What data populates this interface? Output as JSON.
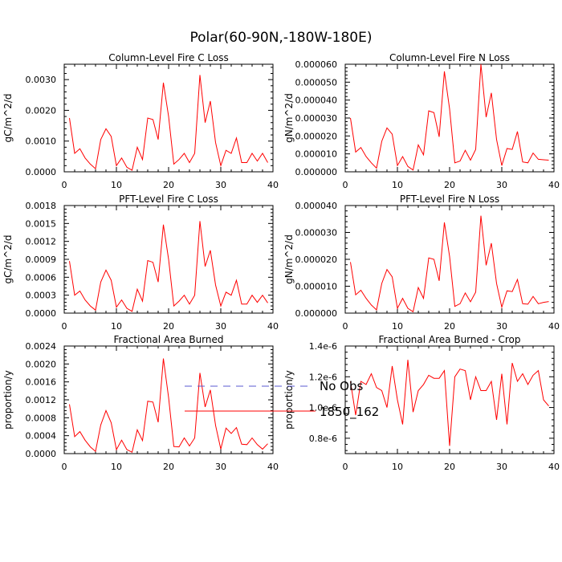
{
  "figure": {
    "title": "Polar(60-90N,-180W-180E)"
  },
  "legend": {
    "entries": [
      {
        "label": "No Obs",
        "color": "#5a5ad0",
        "dash": true
      },
      {
        "label": "1850_162",
        "color": "#ff0000",
        "dash": false
      }
    ]
  },
  "colors": {
    "series": "#ff0000",
    "axis": "#000000"
  },
  "chart_data": [
    {
      "type": "line",
      "title": "Column-Level Fire C Loss",
      "ylabel": "gC/m^2/d",
      "xlim": [
        0,
        40
      ],
      "ylim": [
        0,
        0.0035
      ],
      "xticks": [
        0,
        10,
        20,
        30,
        40
      ],
      "xtick_labels": [
        "0",
        "10",
        "20",
        "30",
        "40"
      ],
      "yticks": [
        0,
        0.001,
        0.002,
        0.003
      ],
      "ytick_labels": [
        "0.0000",
        "0.0010",
        "0.0020",
        "0.0030"
      ],
      "series": [
        {
          "name": "1850_162",
          "x": [
            1,
            2,
            3,
            4,
            5,
            6,
            7,
            8,
            9,
            10,
            11,
            12,
            13,
            14,
            15,
            16,
            17,
            18,
            19,
            20,
            21,
            22,
            23,
            24,
            25,
            26,
            27,
            28,
            29,
            30,
            31,
            32,
            33,
            34,
            35,
            36,
            37,
            38,
            39
          ],
          "values": [
            0.00175,
            0.0006,
            0.00075,
            0.00045,
            0.00025,
            0.0001,
            0.00105,
            0.0014,
            0.00115,
            0.0002,
            0.00045,
            0.00015,
            5e-05,
            0.0008,
            0.0004,
            0.00175,
            0.0017,
            0.00105,
            0.0029,
            0.0018,
            0.00025,
            0.0004,
            0.0006,
            0.0003,
            0.0006,
            0.00315,
            0.0016,
            0.0023,
            0.00095,
            0.0002,
            0.0007,
            0.0006,
            0.0011,
            0.0003,
            0.0003,
            0.0006,
            0.00035,
            0.0006,
            0.0003
          ]
        }
      ]
    },
    {
      "type": "line",
      "title": "Column-Level Fire N Loss",
      "ylabel": "gN/m^2/d",
      "xlim": [
        0,
        40
      ],
      "ylim": [
        0,
        6e-05
      ],
      "xticks": [
        0,
        10,
        20,
        30,
        40
      ],
      "xtick_labels": [
        "0",
        "10",
        "20",
        "30",
        "40"
      ],
      "yticks": [
        0,
        1e-05,
        2e-05,
        3e-05,
        4e-05,
        5e-05,
        6e-05
      ],
      "ytick_labels": [
        "0.000000",
        "0.000010",
        "0.000020",
        "0.000030",
        "0.000040",
        "0.000050",
        "0.000060"
      ],
      "series": [
        {
          "name": "1850_162",
          "x": [
            1,
            2,
            3,
            4,
            5,
            6,
            7,
            8,
            9,
            10,
            11,
            12,
            13,
            14,
            15,
            16,
            17,
            18,
            19,
            20,
            21,
            22,
            23,
            24,
            25,
            26,
            27,
            28,
            29,
            30,
            31,
            32,
            33,
            34,
            35,
            36,
            37,
            38,
            39
          ],
          "values": [
            3e-05,
            1.1e-05,
            1.35e-05,
            8.5e-06,
            5e-06,
            2e-06,
            1.7e-05,
            2.45e-05,
            2.1e-05,
            3.5e-06,
            8.5e-06,
            3e-06,
            1e-06,
            1.5e-05,
            9.5e-06,
            3.4e-05,
            3.3e-05,
            1.95e-05,
            5.6e-05,
            3.5e-05,
            5e-06,
            6e-06,
            1.2e-05,
            6.5e-06,
            1.25e-05,
            6e-05,
            3.05e-05,
            4.4e-05,
            1.8e-05,
            3.5e-06,
            1.3e-05,
            1.25e-05,
            2.25e-05,
            5.5e-06,
            5e-06,
            1.05e-05,
            7e-06,
            6.7e-06,
            6.5e-06
          ]
        }
      ]
    },
    {
      "type": "line",
      "title": "PFT-Level Fire C Loss",
      "ylabel": "gC/m^2/d",
      "xlim": [
        0,
        40
      ],
      "ylim": [
        0,
        0.0018
      ],
      "xticks": [
        0,
        10,
        20,
        30,
        40
      ],
      "xtick_labels": [
        "0",
        "10",
        "20",
        "30",
        "40"
      ],
      "yticks": [
        0,
        0.0003,
        0.0006,
        0.0009,
        0.0012,
        0.0015,
        0.0018
      ],
      "ytick_labels": [
        "0.0000",
        "0.0003",
        "0.0006",
        "0.0009",
        "0.0012",
        "0.0015",
        "0.0018"
      ],
      "series": [
        {
          "name": "1850_162",
          "x": [
            1,
            2,
            3,
            4,
            5,
            6,
            7,
            8,
            9,
            10,
            11,
            12,
            13,
            14,
            15,
            16,
            17,
            18,
            19,
            20,
            21,
            22,
            23,
            24,
            25,
            26,
            27,
            28,
            29,
            30,
            31,
            32,
            33,
            34,
            35,
            36,
            37,
            38,
            39
          ],
          "values": [
            0.00087,
            0.0003,
            0.00037,
            0.00022,
            0.00012,
            5e-05,
            0.00052,
            0.00072,
            0.00055,
            0.0001,
            0.00022,
            8e-05,
            3e-05,
            0.0004,
            0.0002,
            0.00088,
            0.00085,
            0.00052,
            0.00148,
            0.0009,
            0.00012,
            0.0002,
            0.0003,
            0.00015,
            0.0003,
            0.00154,
            0.00078,
            0.00105,
            0.00047,
            0.00012,
            0.00035,
            0.0003,
            0.00055,
            0.00015,
            0.00015,
            0.0003,
            0.00018,
            0.0003,
            0.00017
          ]
        }
      ]
    },
    {
      "type": "line",
      "title": "PFT-Level Fire N Loss",
      "ylabel": "gN/m^2/d",
      "xlim": [
        0,
        40
      ],
      "ylim": [
        0,
        4e-05
      ],
      "xticks": [
        0,
        10,
        20,
        30,
        40
      ],
      "xtick_labels": [
        "0",
        "10",
        "20",
        "30",
        "40"
      ],
      "yticks": [
        0,
        1e-05,
        2e-05,
        3e-05,
        4e-05
      ],
      "ytick_labels": [
        "0.000000",
        "0.000010",
        "0.000020",
        "0.000030",
        "0.000040"
      ],
      "series": [
        {
          "name": "1850_162",
          "x": [
            1,
            2,
            3,
            4,
            5,
            6,
            7,
            8,
            9,
            10,
            11,
            12,
            13,
            14,
            15,
            16,
            17,
            18,
            19,
            20,
            21,
            22,
            23,
            24,
            25,
            26,
            27,
            28,
            29,
            30,
            31,
            32,
            33,
            34,
            35,
            36,
            37,
            38,
            39
          ],
          "values": [
            1.9e-05,
            6.8e-06,
            8.5e-06,
            5.5e-06,
            3e-06,
            1.2e-06,
            1.1e-05,
            1.62e-05,
            1.35e-05,
            1.8e-06,
            5.5e-06,
            1.8e-06,
            5e-07,
            9.5e-06,
            5.5e-06,
            2.05e-05,
            2e-05,
            1.2e-05,
            3.37e-05,
            2.1e-05,
            2.5e-06,
            3.5e-06,
            7.5e-06,
            4.2e-06,
            7.8e-06,
            3.62e-05,
            1.78e-05,
            2.6e-05,
            1.1e-05,
            2.2e-06,
            8.3e-06,
            8e-06,
            1.25e-05,
            3.5e-06,
            3.3e-06,
            6.2e-06,
            3.5e-06,
            4e-06,
            4.3e-06
          ]
        }
      ]
    },
    {
      "type": "line",
      "title": "Fractional Area Burned",
      "ylabel": "proportion/y",
      "xlim": [
        0,
        40
      ],
      "ylim": [
        0,
        0.0024
      ],
      "xticks": [
        0,
        10,
        20,
        30,
        40
      ],
      "xtick_labels": [
        "0",
        "10",
        "20",
        "30",
        "40"
      ],
      "yticks": [
        0,
        0.0004,
        0.0008,
        0.0012,
        0.0016,
        0.002,
        0.0024
      ],
      "ytick_labels": [
        "0.0000",
        "0.0004",
        "0.0008",
        "0.0012",
        "0.0016",
        "0.0020",
        "0.0024"
      ],
      "series": [
        {
          "name": "1850_162",
          "x": [
            1,
            2,
            3,
            4,
            5,
            6,
            7,
            8,
            9,
            10,
            11,
            12,
            13,
            14,
            15,
            16,
            17,
            18,
            19,
            20,
            21,
            22,
            23,
            24,
            25,
            26,
            27,
            28,
            29,
            30,
            31,
            32,
            33,
            34,
            35,
            36,
            37,
            38,
            39
          ],
          "values": [
            0.0011,
            0.00038,
            0.00049,
            0.0003,
            0.00015,
            5e-05,
            0.00064,
            0.00096,
            0.00069,
            9e-05,
            0.0003,
            9e-05,
            3e-05,
            0.00053,
            0.00029,
            0.00117,
            0.00115,
            0.0007,
            0.00212,
            0.00125,
            0.00016,
            0.00015,
            0.00035,
            0.00017,
            0.00035,
            0.0018,
            0.00104,
            0.00142,
            0.00063,
            0.0001,
            0.00057,
            0.00045,
            0.00058,
            0.00021,
            0.0002,
            0.00035,
            0.0002,
            0.0001,
            0.00022
          ]
        }
      ]
    },
    {
      "type": "line",
      "title": "Fractional Area Burned - Crop",
      "ylabel": "proportion/y",
      "xlim": [
        0,
        40
      ],
      "ylim": [
        7e-07,
        1.4e-06
      ],
      "xticks": [
        0,
        10,
        20,
        30,
        40
      ],
      "xtick_labels": [
        "0",
        "10",
        "20",
        "30",
        "40"
      ],
      "yticks": [
        8e-07,
        1e-06,
        1.2e-06,
        1.4e-06
      ],
      "ytick_labels": [
        "0.8e-6",
        "1.0e-6",
        "1.2e-6",
        "1.4e-6"
      ],
      "series": [
        {
          "name": "1850_162",
          "x": [
            1,
            2,
            3,
            4,
            5,
            6,
            7,
            8,
            9,
            10,
            11,
            12,
            13,
            14,
            15,
            16,
            17,
            18,
            19,
            20,
            21,
            22,
            23,
            24,
            25,
            26,
            27,
            28,
            29,
            30,
            31,
            32,
            33,
            34,
            35,
            36,
            37,
            38,
            39
          ],
          "values": [
            1.17e-06,
            9.5e-07,
            1.17e-06,
            1.15e-06,
            1.22e-06,
            1.13e-06,
            1.11e-06,
            1e-06,
            1.27e-06,
            1.05e-06,
            8.9e-07,
            1.31e-06,
            9.7e-07,
            1.11e-06,
            1.15e-06,
            1.21e-06,
            1.19e-06,
            1.19e-06,
            1.24e-06,
            7.5e-07,
            1.2e-06,
            1.25e-06,
            1.24e-06,
            1.05e-06,
            1.2e-06,
            1.11e-06,
            1.11e-06,
            1.17e-06,
            9.2e-07,
            1.22e-06,
            8.9e-07,
            1.29e-06,
            1.17e-06,
            1.22e-06,
            1.15e-06,
            1.21e-06,
            1.24e-06,
            1.05e-06,
            1.01e-06
          ]
        }
      ]
    }
  ]
}
